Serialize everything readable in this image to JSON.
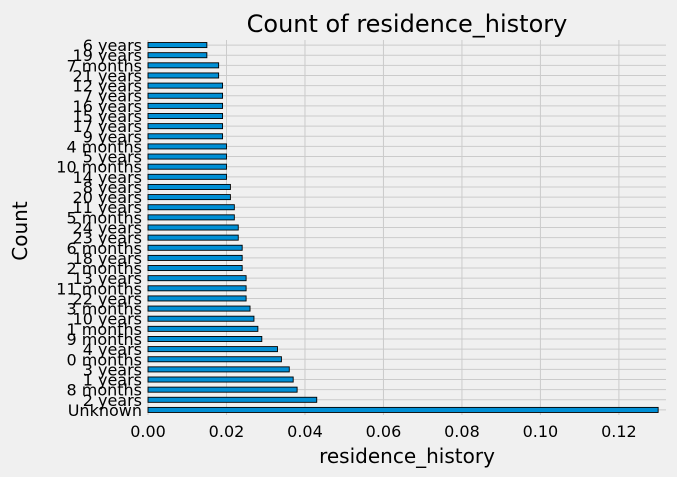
{
  "colors": {
    "background": "#f0f0f0",
    "bar": "#008fd5",
    "grid": "#cbcbcb"
  },
  "chart_data": {
    "type": "bar",
    "orientation": "horizontal",
    "title": "Count of residence_history",
    "xlabel": "residence_history",
    "ylabel": "Count",
    "xlim": [
      0,
      0.132
    ],
    "xticks": [
      "0.00",
      "0.02",
      "0.04",
      "0.06",
      "0.08",
      "0.10",
      "0.12"
    ],
    "xtick_values": [
      0,
      0.02,
      0.04,
      0.06,
      0.08,
      0.1,
      0.12
    ],
    "grid": true,
    "categories": [
      "6 years",
      "19 years",
      "7 months",
      "21 years",
      "12 years",
      "7 years",
      "16 years",
      "15 years",
      "17 years",
      "9 years",
      "4 months",
      "5 years",
      "10 months",
      "14 years",
      "8 years",
      "20 years",
      "11 years",
      "5 months",
      "24 years",
      "23 years",
      "6 months",
      "18 years",
      "2 months",
      "13 years",
      "11 months",
      "22 years",
      "3 months",
      "10 years",
      "1 months",
      "9 months",
      "4 years",
      "0 months",
      "3 years",
      "1 years",
      "8 months",
      "2 years",
      "Unknown"
    ],
    "values": [
      0.015,
      0.015,
      0.018,
      0.018,
      0.019,
      0.019,
      0.019,
      0.019,
      0.019,
      0.019,
      0.02,
      0.02,
      0.02,
      0.02,
      0.021,
      0.021,
      0.022,
      0.022,
      0.023,
      0.023,
      0.024,
      0.024,
      0.024,
      0.025,
      0.025,
      0.025,
      0.026,
      0.027,
      0.028,
      0.029,
      0.033,
      0.034,
      0.036,
      0.037,
      0.038,
      0.043,
      0.13
    ]
  }
}
